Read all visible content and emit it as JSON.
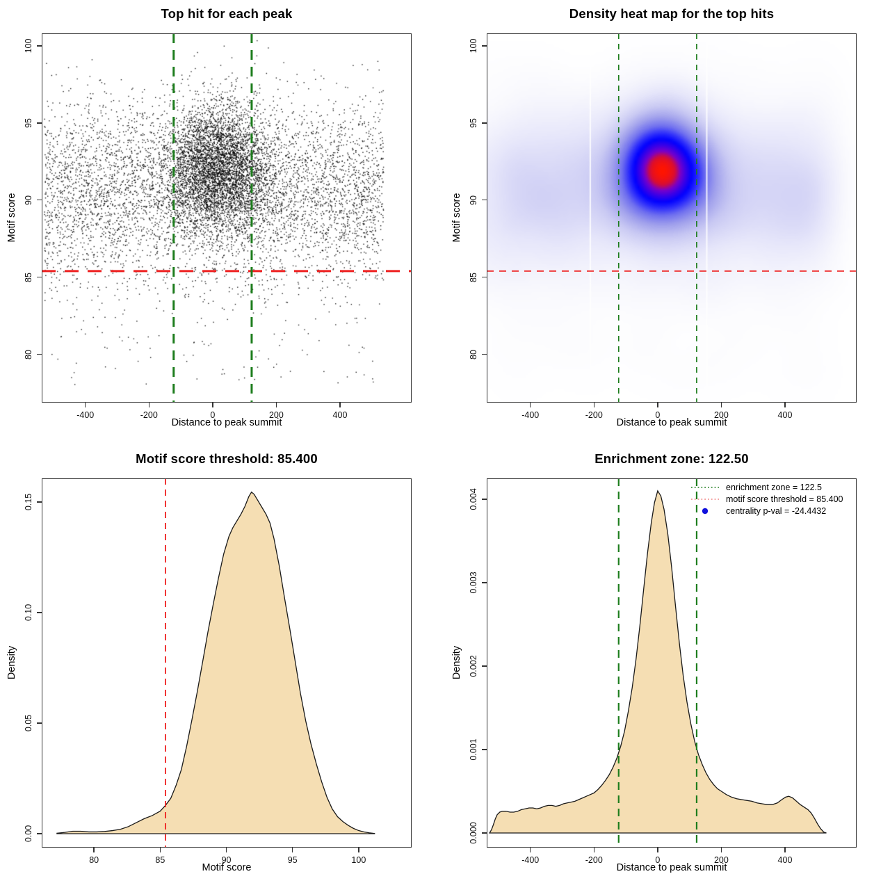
{
  "figure": {
    "background": "#ffffff",
    "accent_colors": {
      "threshold_red": "#ee2020",
      "zone_green": "#1d7d1d",
      "legend_red_swatch": "#f08080",
      "pval_blue": "#1111dd",
      "density_fill": "#f5deb3",
      "density_stroke": "#1a1a1a",
      "point_black": "#000000"
    }
  },
  "chart_data": [
    {
      "type": "scatter",
      "title": "Top hit for each peak",
      "xlabel": "Distance to peak summit",
      "ylabel": "Motif score",
      "xlim": [
        -537,
        625
      ],
      "ylim": [
        76.88,
        100.8
      ],
      "grid": false,
      "xticks": [
        {
          "v": -400,
          "label": "-400"
        },
        {
          "v": -200,
          "label": "-200"
        },
        {
          "v": 0,
          "label": "0"
        },
        {
          "v": 200,
          "label": "200"
        },
        {
          "v": 400,
          "label": "400"
        }
      ],
      "yticks": [
        {
          "v": 80,
          "label": "80"
        },
        {
          "v": 85,
          "label": "85"
        },
        {
          "v": 90,
          "label": "90"
        },
        {
          "v": 95,
          "label": "95"
        },
        {
          "v": 100,
          "label": "100"
        }
      ],
      "point_color": "#000000",
      "lines": [
        {
          "orient": "h",
          "v": 85.4,
          "color": "#ee2020",
          "role": "motif-score-threshold"
        },
        {
          "orient": "v",
          "v": -122.5,
          "color": "#1d7d1d",
          "role": "enrichment-zone-left"
        },
        {
          "orient": "v",
          "v": 122.5,
          "color": "#1d7d1d",
          "role": "enrichment-zone-right"
        }
      ],
      "synthesis": {
        "seed": 42,
        "groups": [
          {
            "n": 4300,
            "x": {
              "dist": "normal",
              "mean": 15,
              "sd": 82
            },
            "y": {
              "dist": "normal",
              "mean": 92.0,
              "sd": 2.05
            }
          },
          {
            "n": 5200,
            "x": {
              "dist": "uniform",
              "min": -528,
              "max": 537
            },
            "y": {
              "dist": "normal",
              "mean": 90.6,
              "sd": 2.9
            }
          },
          {
            "n": 150,
            "x": {
              "dist": "uniform",
              "min": -510,
              "max": 510
            },
            "y": {
              "dist": "uniform",
              "min": 78.0,
              "max": 85.8
            }
          }
        ],
        "y_clip": [
          77.3,
          100.45
        ],
        "x_clip": [
          -530,
          540
        ]
      }
    },
    {
      "type": "heatmap",
      "title": "Density heat map for the top hits",
      "xlabel": "Distance to peak summit",
      "ylabel": "Motif score",
      "xlim": [
        -537,
        625
      ],
      "ylim": [
        76.88,
        100.8
      ],
      "xticks": [
        {
          "v": -400,
          "label": "-400"
        },
        {
          "v": -200,
          "label": "-200"
        },
        {
          "v": 0,
          "label": "0"
        },
        {
          "v": 200,
          "label": "200"
        },
        {
          "v": 400,
          "label": "400"
        }
      ],
      "yticks": [
        {
          "v": 80,
          "label": "80"
        },
        {
          "v": 85,
          "label": "85"
        },
        {
          "v": 90,
          "label": "90"
        },
        {
          "v": 95,
          "label": "95"
        },
        {
          "v": 100,
          "label": "100"
        }
      ],
      "hotspot": {
        "x": 25,
        "y": 92
      },
      "ramp": [
        [
          0.0,
          "#ffffff"
        ],
        [
          0.05,
          "#f8f8fd"
        ],
        [
          0.16,
          "#e6e6fa"
        ],
        [
          0.3,
          "#c9c9f3"
        ],
        [
          0.44,
          "#a0a0ec"
        ],
        [
          0.57,
          "#6f6fef"
        ],
        [
          0.68,
          "#2b2bfc"
        ],
        [
          0.76,
          "#0000ff"
        ],
        [
          0.84,
          "#3d00e6"
        ],
        [
          0.9,
          "#7a00c8"
        ],
        [
          0.95,
          "#d80d32"
        ],
        [
          1.0,
          "#ff1400"
        ]
      ],
      "white_stripes_x": [
        -212,
        154
      ],
      "lines": [
        {
          "orient": "h",
          "v": 85.4,
          "color": "#ee2020",
          "role": "motif-score-threshold"
        },
        {
          "orient": "v",
          "v": -122.5,
          "color": "#1d7d1d",
          "role": "enrichment-zone-left"
        },
        {
          "orient": "v",
          "v": 122.5,
          "color": "#1d7d1d",
          "role": "enrichment-zone-right"
        }
      ],
      "synthesis_ref": 0
    },
    {
      "type": "area",
      "title": "Motif score threshold: 85.400",
      "xlabel": "Motif score",
      "ylabel": "Density",
      "xlim": [
        76.05,
        104.0
      ],
      "ylim": [
        -0.00629,
        0.16071
      ],
      "xticks": [
        {
          "v": 80,
          "label": "80"
        },
        {
          "v": 85,
          "label": "85"
        },
        {
          "v": 90,
          "label": "90"
        },
        {
          "v": 95,
          "label": "95"
        },
        {
          "v": 100,
          "label": "100"
        }
      ],
      "yticks": [
        {
          "v": 0.0,
          "label": "0.00"
        },
        {
          "v": 0.05,
          "label": "0.05"
        },
        {
          "v": 0.1,
          "label": "0.10"
        },
        {
          "v": 0.15,
          "label": "0.15"
        }
      ],
      "fill": "#f5deb3",
      "stroke": "#1a1a1a",
      "lines": [
        {
          "orient": "v",
          "v": 85.4,
          "color": "#ee2020",
          "role": "motif-score-threshold"
        }
      ],
      "curve": [
        [
          77.2,
          0.0002
        ],
        [
          77.8,
          0.0006
        ],
        [
          78.4,
          0.0011
        ],
        [
          79.0,
          0.0011
        ],
        [
          79.6,
          0.0008
        ],
        [
          80.2,
          0.0008
        ],
        [
          80.8,
          0.001
        ],
        [
          81.4,
          0.0014
        ],
        [
          82.0,
          0.002
        ],
        [
          82.6,
          0.0032
        ],
        [
          83.2,
          0.005
        ],
        [
          83.8,
          0.0068
        ],
        [
          84.4,
          0.0082
        ],
        [
          85.0,
          0.0102
        ],
        [
          85.4,
          0.0128
        ],
        [
          85.8,
          0.016
        ],
        [
          86.2,
          0.0218
        ],
        [
          86.6,
          0.029
        ],
        [
          87.0,
          0.0395
        ],
        [
          87.4,
          0.0515
        ],
        [
          87.8,
          0.064
        ],
        [
          88.2,
          0.0775
        ],
        [
          88.6,
          0.091
        ],
        [
          89.0,
          0.1035
        ],
        [
          89.4,
          0.1155
        ],
        [
          89.8,
          0.1265
        ],
        [
          90.2,
          0.1345
        ],
        [
          90.5,
          0.1385
        ],
        [
          90.8,
          0.1415
        ],
        [
          91.1,
          0.1445
        ],
        [
          91.4,
          0.148
        ],
        [
          91.7,
          0.1525
        ],
        [
          91.9,
          0.1545
        ],
        [
          92.1,
          0.1535
        ],
        [
          92.4,
          0.1505
        ],
        [
          92.7,
          0.1475
        ],
        [
          93.0,
          0.1445
        ],
        [
          93.3,
          0.1405
        ],
        [
          93.6,
          0.1335
        ],
        [
          94.0,
          0.121
        ],
        [
          94.4,
          0.1065
        ],
        [
          94.8,
          0.0925
        ],
        [
          95.2,
          0.078
        ],
        [
          95.6,
          0.0635
        ],
        [
          96.0,
          0.051
        ],
        [
          96.4,
          0.0405
        ],
        [
          96.8,
          0.0315
        ],
        [
          97.2,
          0.0235
        ],
        [
          97.6,
          0.0165
        ],
        [
          98.0,
          0.0112
        ],
        [
          98.4,
          0.0077
        ],
        [
          98.8,
          0.0055
        ],
        [
          99.2,
          0.0038
        ],
        [
          99.6,
          0.0024
        ],
        [
          100.0,
          0.0014
        ],
        [
          100.4,
          0.0008
        ],
        [
          100.8,
          0.0004
        ],
        [
          101.2,
          0.0001
        ]
      ]
    },
    {
      "type": "area",
      "title": "Enrichment zone: 122.50",
      "xlabel": "Distance to peak summit",
      "ylabel": "Density",
      "xlim": [
        -537,
        625
      ],
      "ylim": [
        -0.000175,
        0.00425
      ],
      "xticks": [
        {
          "v": -400,
          "label": "-400"
        },
        {
          "v": -200,
          "label": "-200"
        },
        {
          "v": 0,
          "label": "0"
        },
        {
          "v": 200,
          "label": "200"
        },
        {
          "v": 400,
          "label": "400"
        }
      ],
      "yticks": [
        {
          "v": 0.0,
          "label": "0.000"
        },
        {
          "v": 0.001,
          "label": "0.001"
        },
        {
          "v": 0.002,
          "label": "0.002"
        },
        {
          "v": 0.003,
          "label": "0.003"
        },
        {
          "v": 0.004,
          "label": "0.004"
        }
      ],
      "fill": "#f5deb3",
      "stroke": "#1a1a1a",
      "lines": [
        {
          "orient": "v",
          "v": -122.5,
          "color": "#1d7d1d",
          "role": "enrichment-zone-left"
        },
        {
          "orient": "v",
          "v": 122.5,
          "color": "#1d7d1d",
          "role": "enrichment-zone-right"
        }
      ],
      "legend": {
        "items": [
          {
            "swatch": "dotted-line",
            "color": "#1d7d1d",
            "label": "enrichment zone = 122.5"
          },
          {
            "swatch": "dotted-line",
            "color": "#f08080",
            "label": "motif score threshold = 85.400"
          },
          {
            "swatch": "dot",
            "color": "#1111dd",
            "label": "centrality p-val = -24.4432"
          }
        ]
      },
      "curve": [
        [
          -528,
          0
        ],
        [
          -522,
          4e-05
        ],
        [
          -516,
          0.0001
        ],
        [
          -510,
          0.00017
        ],
        [
          -504,
          0.00022
        ],
        [
          -496,
          0.00025
        ],
        [
          -488,
          0.00026
        ],
        [
          -476,
          0.00026
        ],
        [
          -464,
          0.00025
        ],
        [
          -452,
          0.00025
        ],
        [
          -440,
          0.00026
        ],
        [
          -428,
          0.00028
        ],
        [
          -416,
          0.00029
        ],
        [
          -404,
          0.0003
        ],
        [
          -392,
          0.0003
        ],
        [
          -380,
          0.00029
        ],
        [
          -368,
          0.0003
        ],
        [
          -356,
          0.00032
        ],
        [
          -344,
          0.00033
        ],
        [
          -332,
          0.00033
        ],
        [
          -320,
          0.00032
        ],
        [
          -308,
          0.00033
        ],
        [
          -296,
          0.00035
        ],
        [
          -284,
          0.00036
        ],
        [
          -272,
          0.00037
        ],
        [
          -260,
          0.00038
        ],
        [
          -248,
          0.0004
        ],
        [
          -236,
          0.00042
        ],
        [
          -224,
          0.00044
        ],
        [
          -212,
          0.00046
        ],
        [
          -200,
          0.00048
        ],
        [
          -188,
          0.00052
        ],
        [
          -176,
          0.00057
        ],
        [
          -164,
          0.00063
        ],
        [
          -152,
          0.0007
        ],
        [
          -140,
          0.00079
        ],
        [
          -128,
          0.0009
        ],
        [
          -116,
          0.00104
        ],
        [
          -104,
          0.00122
        ],
        [
          -92,
          0.00146
        ],
        [
          -80,
          0.00174
        ],
        [
          -68,
          0.00208
        ],
        [
          -56,
          0.00248
        ],
        [
          -44,
          0.00292
        ],
        [
          -32,
          0.00335
        ],
        [
          -20,
          0.00372
        ],
        [
          -10,
          0.00396
        ],
        [
          0,
          0.0041
        ],
        [
          10,
          0.00404
        ],
        [
          20,
          0.00388
        ],
        [
          32,
          0.00358
        ],
        [
          44,
          0.00318
        ],
        [
          56,
          0.00272
        ],
        [
          68,
          0.00228
        ],
        [
          80,
          0.00189
        ],
        [
          92,
          0.00157
        ],
        [
          104,
          0.00131
        ],
        [
          116,
          0.0011
        ],
        [
          128,
          0.00094
        ],
        [
          140,
          0.00082
        ],
        [
          152,
          0.00072
        ],
        [
          164,
          0.00064
        ],
        [
          176,
          0.00058
        ],
        [
          188,
          0.00053
        ],
        [
          200,
          0.0005
        ],
        [
          216,
          0.00046
        ],
        [
          232,
          0.00043
        ],
        [
          248,
          0.00041
        ],
        [
          264,
          0.0004
        ],
        [
          280,
          0.00039
        ],
        [
          296,
          0.00038
        ],
        [
          312,
          0.00036
        ],
        [
          328,
          0.00035
        ],
        [
          344,
          0.00034
        ],
        [
          360,
          0.00034
        ],
        [
          376,
          0.00036
        ],
        [
          390,
          0.0004
        ],
        [
          402,
          0.00043
        ],
        [
          412,
          0.00044
        ],
        [
          424,
          0.00042
        ],
        [
          436,
          0.00038
        ],
        [
          448,
          0.00034
        ],
        [
          460,
          0.00031
        ],
        [
          472,
          0.00028
        ],
        [
          482,
          0.00024
        ],
        [
          492,
          0.00018
        ],
        [
          502,
          0.00011
        ],
        [
          512,
          5e-05
        ],
        [
          522,
          1e-05
        ],
        [
          530,
          0
        ]
      ]
    }
  ]
}
